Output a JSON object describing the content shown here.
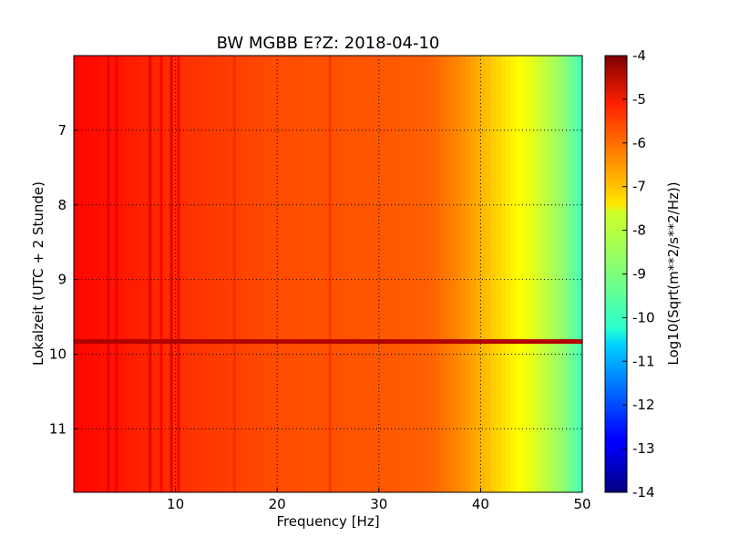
{
  "chart_data": {
    "type": "heatmap",
    "title": "BW MGBB E?Z: 2018-04-10",
    "xlabel": "Frequency [Hz]",
    "ylabel": "Lokalzeit (UTC + 2 Stunde)",
    "xlim": [
      0,
      50
    ],
    "ylim": [
      6.0,
      11.85
    ],
    "y_inverted": true,
    "x_ticks": [
      10,
      20,
      30,
      40,
      50
    ],
    "y_ticks": [
      7,
      8,
      9,
      10,
      11
    ],
    "grid": true,
    "colormap": "jet",
    "colorbar": {
      "label": "Log10(Sqrt(m**2/s**2/Hz))",
      "range": [
        -14,
        -4
      ],
      "ticks": [
        -4,
        -5,
        -6,
        -7,
        -8,
        -9,
        -10,
        -11,
        -12,
        -13,
        -14
      ]
    },
    "level_by_frequency": [
      {
        "freq": 0,
        "value": -5.3
      },
      {
        "freq": 5,
        "value": -5.5
      },
      {
        "freq": 10,
        "value": -5.7
      },
      {
        "freq": 20,
        "value": -6.0
      },
      {
        "freq": 30,
        "value": -6.1
      },
      {
        "freq": 35,
        "value": -6.2
      },
      {
        "freq": 38,
        "value": -6.6
      },
      {
        "freq": 40,
        "value": -7.0
      },
      {
        "freq": 43,
        "value": -7.6
      },
      {
        "freq": 45,
        "value": -8.0
      },
      {
        "freq": 48,
        "value": -8.8
      },
      {
        "freq": 50,
        "value": -9.6
      }
    ],
    "vertical_lines": [
      {
        "freq": 3.4,
        "value": -5.0
      },
      {
        "freq": 4.2,
        "value": -5.1
      },
      {
        "freq": 7.5,
        "value": -5.0
      },
      {
        "freq": 8.6,
        "value": -5.2
      },
      {
        "freq": 9.6,
        "value": -4.9
      },
      {
        "freq": 10.3,
        "value": -5.1
      },
      {
        "freq": 15.8,
        "value": -5.6
      },
      {
        "freq": 25.2,
        "value": -5.7
      }
    ],
    "horizontal_event": {
      "time": 9.83,
      "freq_range": [
        0,
        50
      ],
      "value": -4.5
    }
  }
}
